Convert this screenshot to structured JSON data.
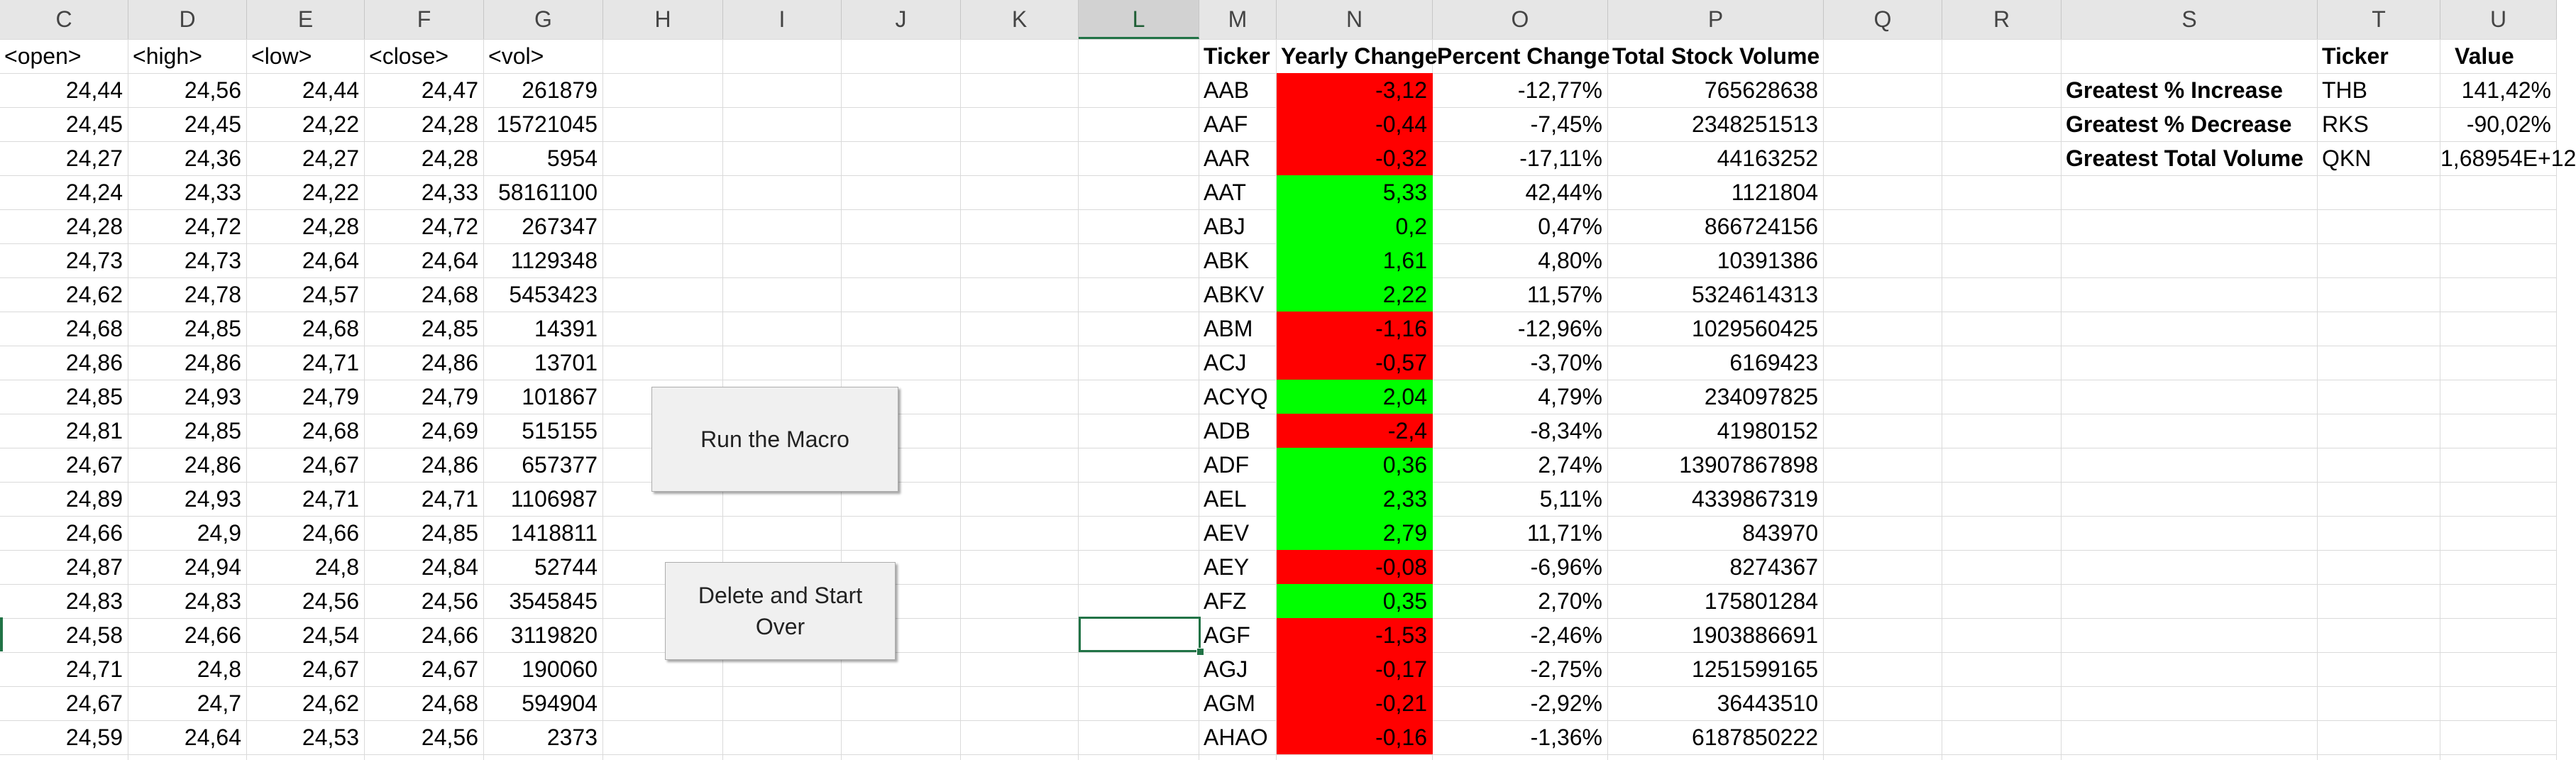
{
  "colors": {
    "positive": "#00ff00",
    "negative": "#ff0000",
    "selection": "#217346"
  },
  "columns": [
    "C",
    "D",
    "E",
    "F",
    "G",
    "H",
    "I",
    "J",
    "K",
    "L",
    "M",
    "N",
    "O",
    "P",
    "Q",
    "R",
    "S",
    "T",
    "U"
  ],
  "active_column": "L",
  "raw_headers": [
    "<open>",
    "<high>",
    "<low>",
    "<close>",
    "<vol>"
  ],
  "raw_rows": [
    [
      "24,44",
      "24,56",
      "24,44",
      "24,47",
      "261879"
    ],
    [
      "24,45",
      "24,45",
      "24,22",
      "24,28",
      "15721045"
    ],
    [
      "24,27",
      "24,36",
      "24,27",
      "24,28",
      "5954"
    ],
    [
      "24,24",
      "24,33",
      "24,22",
      "24,33",
      "58161100"
    ],
    [
      "24,28",
      "24,72",
      "24,28",
      "24,72",
      "267347"
    ],
    [
      "24,73",
      "24,73",
      "24,64",
      "24,64",
      "1129348"
    ],
    [
      "24,62",
      "24,78",
      "24,57",
      "24,68",
      "5453423"
    ],
    [
      "24,68",
      "24,85",
      "24,68",
      "24,85",
      "14391"
    ],
    [
      "24,86",
      "24,86",
      "24,71",
      "24,86",
      "13701"
    ],
    [
      "24,85",
      "24,93",
      "24,79",
      "24,79",
      "101867"
    ],
    [
      "24,81",
      "24,85",
      "24,68",
      "24,69",
      "515155"
    ],
    [
      "24,67",
      "24,86",
      "24,67",
      "24,86",
      "657377"
    ],
    [
      "24,89",
      "24,93",
      "24,71",
      "24,71",
      "1106987"
    ],
    [
      "24,66",
      "24,9",
      "24,66",
      "24,85",
      "1418811"
    ],
    [
      "24,87",
      "24,94",
      "24,8",
      "24,84",
      "52744"
    ],
    [
      "24,83",
      "24,83",
      "24,56",
      "24,56",
      "3545845"
    ],
    [
      "24,58",
      "24,66",
      "24,54",
      "24,66",
      "3119820"
    ],
    [
      "24,71",
      "24,8",
      "24,67",
      "24,67",
      "190060"
    ],
    [
      "24,67",
      "24,7",
      "24,62",
      "24,68",
      "594904"
    ],
    [
      "24,59",
      "24,64",
      "24,53",
      "24,56",
      "2373"
    ]
  ],
  "summary_headers": [
    "Ticker",
    "Yearly Change",
    "Percent Change",
    "Total Stock Volume"
  ],
  "summary_rows": [
    {
      "ticker": "AAB",
      "change": "-3,12",
      "pct": "-12,77%",
      "volume": "765628638",
      "positive": false
    },
    {
      "ticker": "AAF",
      "change": "-0,44",
      "pct": "-7,45%",
      "volume": "2348251513",
      "positive": false
    },
    {
      "ticker": "AAR",
      "change": "-0,32",
      "pct": "-17,11%",
      "volume": "44163252",
      "positive": false
    },
    {
      "ticker": "AAT",
      "change": "5,33",
      "pct": "42,44%",
      "volume": "1121804",
      "positive": true
    },
    {
      "ticker": "ABJ",
      "change": "0,2",
      "pct": "0,47%",
      "volume": "866724156",
      "positive": true
    },
    {
      "ticker": "ABK",
      "change": "1,61",
      "pct": "4,80%",
      "volume": "10391386",
      "positive": true
    },
    {
      "ticker": "ABKV",
      "change": "2,22",
      "pct": "11,57%",
      "volume": "5324614313",
      "positive": true
    },
    {
      "ticker": "ABM",
      "change": "-1,16",
      "pct": "-12,96%",
      "volume": "1029560425",
      "positive": false
    },
    {
      "ticker": "ACJ",
      "change": "-0,57",
      "pct": "-3,70%",
      "volume": "6169423",
      "positive": false
    },
    {
      "ticker": "ACYQ",
      "change": "2,04",
      "pct": "4,79%",
      "volume": "234097825",
      "positive": true
    },
    {
      "ticker": "ADB",
      "change": "-2,4",
      "pct": "-8,34%",
      "volume": "41980152",
      "positive": false
    },
    {
      "ticker": "ADF",
      "change": "0,36",
      "pct": "2,74%",
      "volume": "13907867898",
      "positive": true
    },
    {
      "ticker": "AEL",
      "change": "2,33",
      "pct": "5,11%",
      "volume": "4339867319",
      "positive": true
    },
    {
      "ticker": "AEV",
      "change": "2,79",
      "pct": "11,71%",
      "volume": "843970",
      "positive": true
    },
    {
      "ticker": "AEY",
      "change": "-0,08",
      "pct": "-6,96%",
      "volume": "8274367",
      "positive": false
    },
    {
      "ticker": "AFZ",
      "change": "0,35",
      "pct": "2,70%",
      "volume": "175801284",
      "positive": true
    },
    {
      "ticker": "AGF",
      "change": "-1,53",
      "pct": "-2,46%",
      "volume": "1903886691",
      "positive": false
    },
    {
      "ticker": "AGJ",
      "change": "-0,17",
      "pct": "-2,75%",
      "volume": "1251599165",
      "positive": false
    },
    {
      "ticker": "AGM",
      "change": "-0,21",
      "pct": "-2,92%",
      "volume": "36443510",
      "positive": false
    },
    {
      "ticker": "AHAO",
      "change": "-0,16",
      "pct": "-1,36%",
      "volume": "6187850222",
      "positive": false
    }
  ],
  "greatest_headers": [
    "Ticker",
    "Value"
  ],
  "greatest": [
    {
      "label": "Greatest % Increase",
      "ticker": "THB",
      "value": "141,42%"
    },
    {
      "label": "Greatest % Decrease",
      "ticker": "RKS",
      "value": "-90,02%"
    },
    {
      "label": "Greatest Total Volume",
      "ticker": "QKN",
      "value": "1,68954E+12"
    }
  ],
  "buttons": {
    "run_macro": "Run the Macro",
    "delete_start": "Delete and Start Over"
  }
}
